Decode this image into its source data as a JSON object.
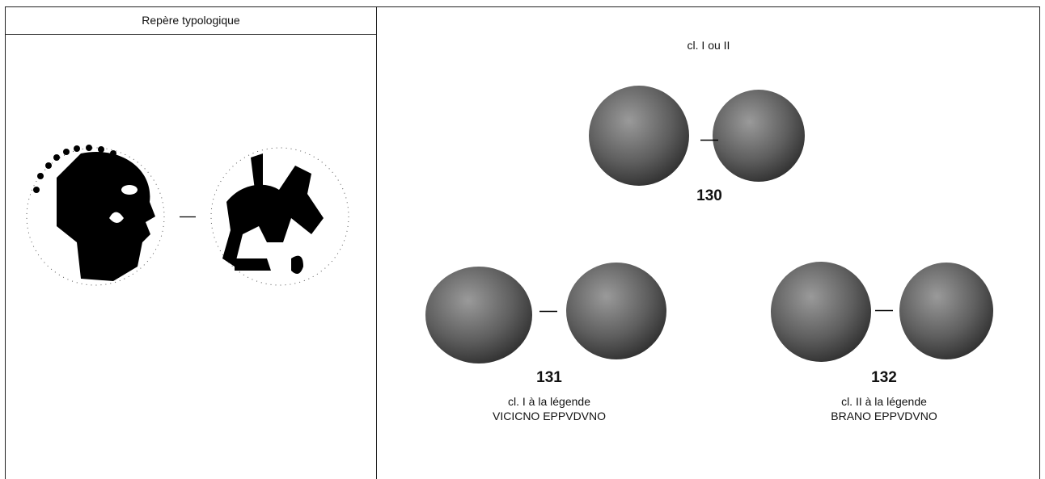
{
  "header": {
    "title": "Repère typologique"
  },
  "group": {
    "label": "cl. I ou II"
  },
  "coins": [
    {
      "number": 130
    },
    {
      "number": 131,
      "caption": [
        "cl. I à la légende",
        "VICICNO EPPVDVNO"
      ]
    },
    {
      "number": 132,
      "caption": [
        "cl. II à la légende",
        "BRANO EPPVDVNO"
      ]
    }
  ]
}
